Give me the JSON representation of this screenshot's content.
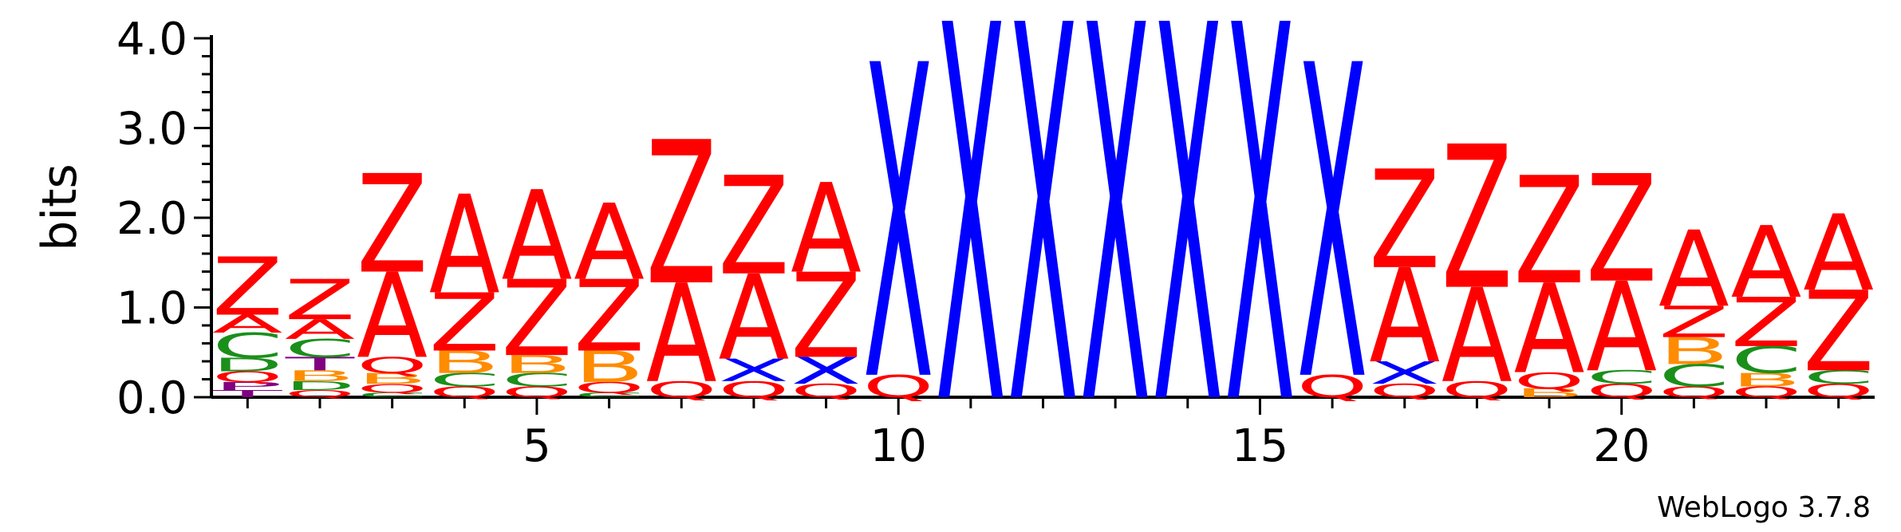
{
  "chart_data": {
    "type": "sequence-logo",
    "ylabel": "bits",
    "ylim": [
      0,
      4.0
    ],
    "yticks": [
      "0.0",
      "1.0",
      "2.0",
      "3.0",
      "4.0"
    ],
    "xticks": [
      {
        "position": 5,
        "label": "5"
      },
      {
        "position": 10,
        "label": "10"
      },
      {
        "position": 15,
        "label": "15"
      },
      {
        "position": 20,
        "label": "20"
      }
    ],
    "colors": {
      "Z": "#ff0000",
      "A": "#ff0000",
      "Q": "#ff0000",
      "X": "#0000ff",
      "C": "#1a8f1a",
      "B": "#ff8c00",
      "D": "#1a8f1a",
      "T": "#800080",
      "P": "#800080"
    },
    "positions": [
      {
        "pos": 1,
        "stack": [
          [
            "T",
            0.08
          ],
          [
            "P",
            0.09
          ],
          [
            "Q",
            0.12
          ],
          [
            "D",
            0.15
          ],
          [
            "C",
            0.28
          ],
          [
            "A",
            0.2
          ],
          [
            "Z",
            0.65
          ]
        ]
      },
      {
        "pos": 2,
        "stack": [
          [
            "Q",
            0.08
          ],
          [
            "D",
            0.1
          ],
          [
            "B",
            0.12
          ],
          [
            "T",
            0.15
          ],
          [
            "C",
            0.2
          ],
          [
            "A",
            0.22
          ],
          [
            "Z",
            0.45
          ]
        ]
      },
      {
        "pos": 3,
        "stack": [
          [
            "C",
            0.05
          ],
          [
            "Q",
            0.1
          ],
          [
            "B",
            0.12
          ],
          [
            "Q",
            0.18
          ],
          [
            "A",
            0.95
          ],
          [
            "Z",
            1.1
          ]
        ]
      },
      {
        "pos": 4,
        "stack": [
          [
            "Q",
            0.12
          ],
          [
            "C",
            0.15
          ],
          [
            "B",
            0.25
          ],
          [
            "Z",
            0.65
          ],
          [
            "A",
            1.1
          ]
        ]
      },
      {
        "pos": 5,
        "stack": [
          [
            "Q",
            0.12
          ],
          [
            "C",
            0.15
          ],
          [
            "B",
            0.2
          ],
          [
            "Z",
            0.85
          ],
          [
            "A",
            1.0
          ]
        ]
      },
      {
        "pos": 6,
        "stack": [
          [
            "C",
            0.05
          ],
          [
            "Q",
            0.12
          ],
          [
            "B",
            0.35
          ],
          [
            "Z",
            0.8
          ],
          [
            "A",
            0.85
          ]
        ]
      },
      {
        "pos": 7,
        "stack": [
          [
            "Q",
            0.18
          ],
          [
            "A",
            1.1
          ],
          [
            "Z",
            1.6
          ]
        ]
      },
      {
        "pos": 8,
        "stack": [
          [
            "Q",
            0.18
          ],
          [
            "X",
            0.25
          ],
          [
            "A",
            0.95
          ],
          [
            "Z",
            1.1
          ]
        ]
      },
      {
        "pos": 9,
        "stack": [
          [
            "Q",
            0.15
          ],
          [
            "X",
            0.3
          ],
          [
            "Z",
            0.95
          ],
          [
            "A",
            1.0
          ]
        ]
      },
      {
        "pos": 10,
        "stack": [
          [
            "Q",
            0.25
          ],
          [
            "X",
            3.5
          ]
        ]
      },
      {
        "pos": 11,
        "stack": [
          [
            "X",
            4.2
          ]
        ]
      },
      {
        "pos": 12,
        "stack": [
          [
            "X",
            4.2
          ]
        ]
      },
      {
        "pos": 13,
        "stack": [
          [
            "X",
            4.2
          ]
        ]
      },
      {
        "pos": 14,
        "stack": [
          [
            "X",
            4.2
          ]
        ]
      },
      {
        "pos": 15,
        "stack": [
          [
            "X",
            4.2
          ]
        ]
      },
      {
        "pos": 16,
        "stack": [
          [
            "Q",
            0.25
          ],
          [
            "X",
            3.5
          ]
        ]
      },
      {
        "pos": 17,
        "stack": [
          [
            "Q",
            0.15
          ],
          [
            "X",
            0.25
          ],
          [
            "A",
            1.05
          ],
          [
            "Z",
            1.1
          ]
        ]
      },
      {
        "pos": 18,
        "stack": [
          [
            "Q",
            0.18
          ],
          [
            "A",
            1.05
          ],
          [
            "Z",
            1.6
          ]
        ]
      },
      {
        "pos": 19,
        "stack": [
          [
            "B",
            0.1
          ],
          [
            "Q",
            0.18
          ],
          [
            "A",
            1.0
          ],
          [
            "Z",
            1.2
          ]
        ]
      },
      {
        "pos": 20,
        "stack": [
          [
            "Q",
            0.15
          ],
          [
            "C",
            0.15
          ],
          [
            "A",
            1.0
          ],
          [
            "Z",
            1.2
          ]
        ]
      },
      {
        "pos": 21,
        "stack": [
          [
            "Q",
            0.12
          ],
          [
            "C",
            0.25
          ],
          [
            "B",
            0.3
          ],
          [
            "Z",
            0.35
          ],
          [
            "A",
            0.85
          ]
        ]
      },
      {
        "pos": 22,
        "stack": [
          [
            "Q",
            0.12
          ],
          [
            "B",
            0.15
          ],
          [
            "C",
            0.3
          ],
          [
            "Z",
            0.55
          ],
          [
            "A",
            0.8
          ]
        ]
      },
      {
        "pos": 23,
        "stack": [
          [
            "Q",
            0.15
          ],
          [
            "C",
            0.15
          ],
          [
            "Z",
            0.9
          ],
          [
            "A",
            0.85
          ]
        ]
      }
    ]
  },
  "credit": "WebLogo 3.7.8"
}
